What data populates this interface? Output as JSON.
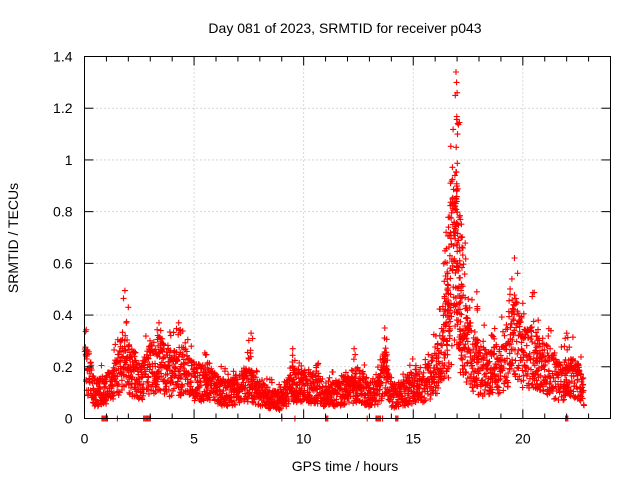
{
  "chart_data": {
    "type": "scatter",
    "title": "Day 081 of 2023, SRMTID for receiver p043",
    "xlabel": "GPS time / hours",
    "ylabel": "SRMTID / TECUs",
    "xlim": [
      0,
      24
    ],
    "ylim": [
      0,
      1.4
    ],
    "xticks": [
      0,
      5,
      10,
      15,
      20
    ],
    "xtick_labels": [
      "0",
      "5",
      "10",
      "15",
      "20"
    ],
    "yticks": [
      0,
      0.2,
      0.4,
      0.6,
      0.8,
      1.0,
      1.2,
      1.4
    ],
    "ytick_labels": [
      "0",
      "0.2",
      "0.4",
      "0.6",
      "0.8",
      "1",
      "1.2",
      "1.4"
    ],
    "grid": true,
    "marker": "plus",
    "color": "#ff0000",
    "envelope": {
      "x": [
        0.0,
        0.3,
        0.5,
        1.0,
        1.3,
        1.6,
        1.9,
        2.0,
        2.3,
        2.6,
        3.0,
        3.5,
        4.0,
        4.5,
        5.0,
        5.5,
        6.0,
        6.5,
        7.0,
        7.5,
        8.0,
        8.5,
        9.0,
        9.5,
        10.0,
        10.5,
        11.0,
        11.5,
        12.0,
        12.5,
        13.0,
        13.5,
        13.7,
        14.0,
        14.5,
        15.0,
        15.5,
        16.0,
        16.3,
        16.6,
        16.8,
        17.0,
        17.2,
        17.5,
        17.8,
        18.0,
        18.5,
        19.0,
        19.5,
        19.7,
        20.0,
        20.5,
        21.0,
        21.5,
        22.0,
        22.3,
        22.6,
        22.8
      ],
      "y": [
        0.23,
        0.15,
        0.1,
        0.12,
        0.14,
        0.2,
        0.28,
        0.2,
        0.18,
        0.15,
        0.2,
        0.22,
        0.18,
        0.2,
        0.15,
        0.14,
        0.12,
        0.1,
        0.12,
        0.14,
        0.1,
        0.08,
        0.07,
        0.14,
        0.13,
        0.12,
        0.1,
        0.1,
        0.12,
        0.14,
        0.1,
        0.12,
        0.22,
        0.09,
        0.1,
        0.13,
        0.14,
        0.18,
        0.25,
        0.45,
        0.65,
        0.55,
        0.38,
        0.28,
        0.22,
        0.2,
        0.18,
        0.22,
        0.3,
        0.35,
        0.25,
        0.26,
        0.22,
        0.16,
        0.15,
        0.17,
        0.14,
        0.1
      ]
    },
    "peaks": [
      {
        "x": 2.0,
        "y": 0.43
      },
      {
        "x": 3.4,
        "y": 0.37
      },
      {
        "x": 4.3,
        "y": 0.37
      },
      {
        "x": 5.6,
        "y": 0.21
      },
      {
        "x": 7.6,
        "y": 0.33
      },
      {
        "x": 9.5,
        "y": 0.27
      },
      {
        "x": 12.3,
        "y": 0.27
      },
      {
        "x": 13.7,
        "y": 0.35
      },
      {
        "x": 16.5,
        "y": 0.72
      },
      {
        "x": 16.7,
        "y": 0.91
      },
      {
        "x": 16.9,
        "y": 0.94
      },
      {
        "x": 16.95,
        "y": 1.34
      },
      {
        "x": 16.98,
        "y": 1.3
      },
      {
        "x": 17.0,
        "y": 1.26
      },
      {
        "x": 17.02,
        "y": 1.1
      },
      {
        "x": 17.2,
        "y": 0.7
      },
      {
        "x": 17.9,
        "y": 0.49
      },
      {
        "x": 19.5,
        "y": 0.54
      },
      {
        "x": 20.7,
        "y": 0.38
      },
      {
        "x": 22.0,
        "y": 0.33
      }
    ],
    "zero_points_x": [
      0.8,
      0.85,
      0.9,
      0.95,
      1.0,
      1.05,
      1.5,
      2.7,
      2.75,
      2.8,
      2.85,
      2.9,
      2.95,
      3.0,
      9.0,
      9.6,
      11.0,
      11.05,
      11.1,
      12.9,
      13.3,
      13.35,
      13.4,
      13.45,
      13.5,
      13.6,
      14.2,
      14.25,
      14.3,
      21.95,
      22.0,
      22.05
    ]
  }
}
